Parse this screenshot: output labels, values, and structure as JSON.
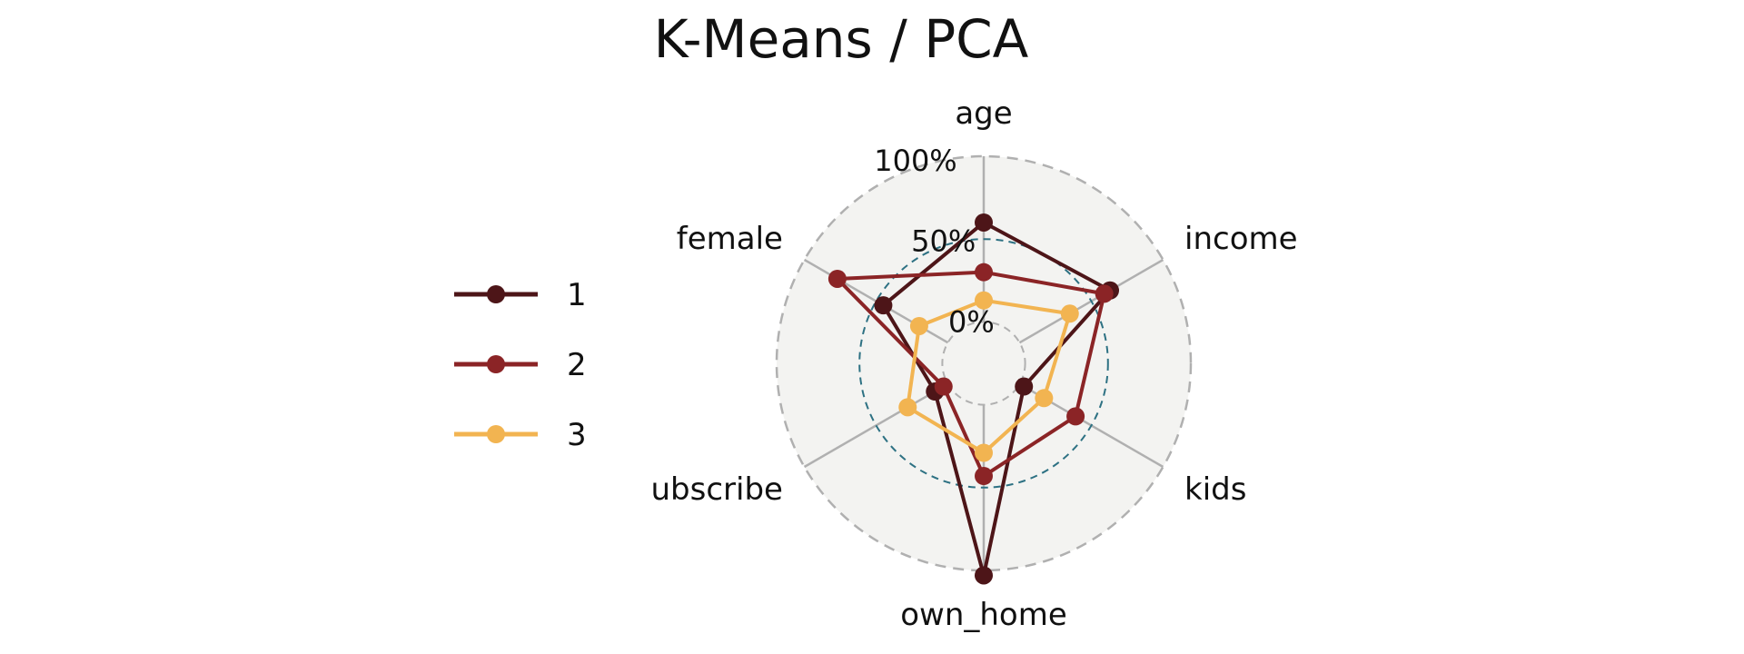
{
  "chart_data": {
    "type": "radar",
    "title": "K-Means / PCA",
    "axes": [
      "age",
      "income",
      "kids",
      "own_home",
      "ubscribe",
      "female"
    ],
    "radial_tick_labels": [
      "0%",
      "50%",
      "100%"
    ],
    "radial_range": [
      -25,
      100
    ],
    "series": [
      {
        "name": "1",
        "color": "#4d1518",
        "values": [
          60,
          63,
          3,
          103,
          9,
          45
        ]
      },
      {
        "name": "2",
        "color": "#8b2426",
        "values": [
          30,
          59,
          39,
          43,
          3,
          77
        ]
      },
      {
        "name": "3",
        "color": "#f2b451",
        "values": [
          13,
          35,
          17,
          29,
          28,
          20
        ]
      }
    ],
    "grid": {
      "background": "#f3f3f1",
      "outer_ring_color": "#b0b0b0",
      "mid_ring_color": "#2d7183",
      "spoke_color": "#b0b0b0"
    },
    "legend_position": "left"
  }
}
